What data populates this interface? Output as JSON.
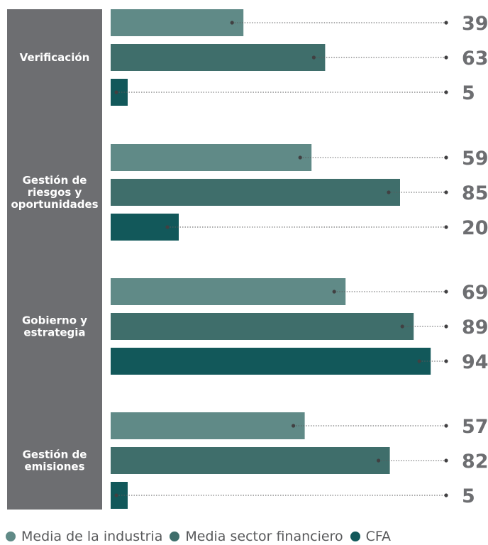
{
  "chart_data": {
    "type": "bar",
    "orientation": "horizontal",
    "categories": [
      "Verificación",
      "Gestión de riesgos y oportunidades",
      "Gobierno y estrategia",
      "Gestión de emisiones"
    ],
    "category_lines": [
      [
        "Verificación"
      ],
      [
        "Gestión de",
        "riesgos y",
        "oportunidades"
      ],
      [
        "Gobierno y",
        "estrategia"
      ],
      [
        "Gestión de",
        "emisiones"
      ]
    ],
    "series": [
      {
        "name": "Media de la industria",
        "values": [
          39,
          59,
          69,
          57
        ],
        "color": "#608a87"
      },
      {
        "name": "Media sector financiero",
        "values": [
          63,
          85,
          89,
          82
        ],
        "color": "#3f6e6b"
      },
      {
        "name": "CFA",
        "values": [
          5,
          20,
          94,
          5
        ],
        "color": "#12585a"
      }
    ],
    "xlim": [
      0,
      100
    ],
    "grid": false,
    "legend_position": "bottom",
    "label_panel_color": "#6d6e71",
    "value_label_color": "#6d6e71"
  }
}
